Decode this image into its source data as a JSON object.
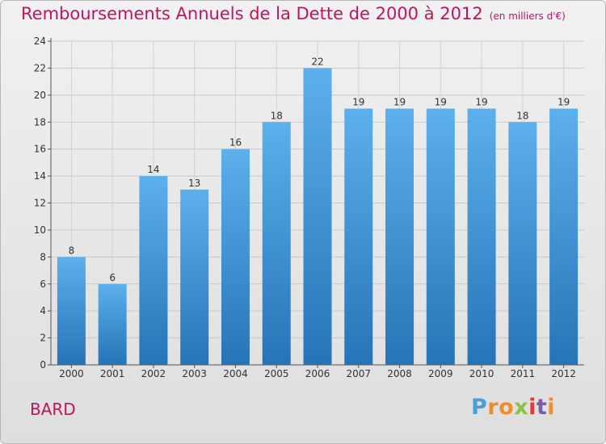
{
  "chart_data": {
    "type": "bar",
    "title": "Remboursements Annuels de la Dette de 2000 à 2012",
    "subtitle": "(en milliers d'€)",
    "categories": [
      "2000",
      "2001",
      "2002",
      "2003",
      "2004",
      "2005",
      "2006",
      "2007",
      "2008",
      "2009",
      "2010",
      "2011",
      "2012"
    ],
    "values": [
      8,
      6,
      14,
      13,
      16,
      18,
      22,
      19,
      19,
      19,
      19,
      18,
      19
    ],
    "ylim": [
      0,
      24
    ],
    "yticks": [
      0,
      2,
      4,
      6,
      8,
      10,
      12,
      14,
      16,
      18,
      20,
      22,
      24
    ],
    "grid": true,
    "bar_color": "#3a8fd6"
  },
  "commune": "BARD",
  "logo": {
    "text": "Proxiti",
    "letters": [
      "P",
      "r",
      "o",
      "x",
      "i",
      "t",
      "i"
    ],
    "colors": [
      "#4a9fd8",
      "#f28c28",
      "#f28c28",
      "#8bc34a",
      "#e53935",
      "#7b5ea7",
      "#f28c28"
    ]
  },
  "colors": {
    "title": "#c4135e",
    "background_top": "#f1f1f1",
    "background_bottom": "#dedede"
  }
}
